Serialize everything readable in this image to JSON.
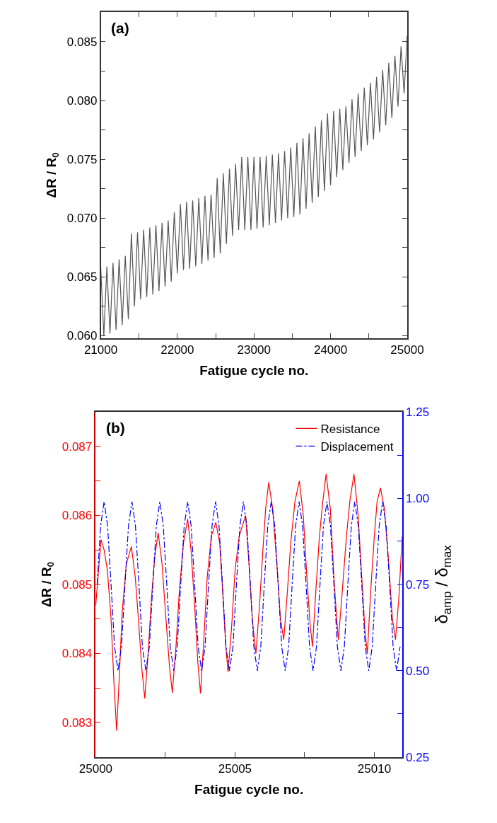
{
  "chart_data": [
    {
      "type": "line",
      "annotations": [
        "(a)"
      ],
      "xlabel": "Fatigue cycle no.",
      "ylabel": "ΔR / R$_{0}$",
      "color": "#555555",
      "grid": false,
      "xlim": [
        21000,
        25000
      ],
      "ylim": [
        0.0598,
        0.0875
      ],
      "xticks": [
        21000,
        {
          "value": 21500,
          "label": null
        },
        22000,
        {
          "value": 22500,
          "label": null
        },
        23000,
        {
          "value": 23500,
          "label": null
        },
        24000,
        {
          "value": 24500,
          "label": null
        },
        25000
      ],
      "yticks": [
        {
          "value": 0.06,
          "label": "0.060"
        },
        {
          "value": 0.0625,
          "label": null
        },
        {
          "value": 0.065,
          "label": "0.065"
        },
        {
          "value": 0.0675,
          "label": null
        },
        {
          "value": 0.07,
          "label": "0.070"
        },
        {
          "value": 0.0725,
          "label": null
        },
        {
          "value": 0.075,
          "label": "0.075"
        },
        {
          "value": 0.0775,
          "label": null
        },
        {
          "value": 0.08,
          "label": "0.080"
        },
        {
          "value": 0.0825,
          "label": null
        },
        {
          "value": 0.085,
          "label": "0.085"
        }
      ],
      "x": [
        21000,
        21040,
        21080,
        21120,
        21160,
        21200,
        21240,
        21280,
        21320,
        21360,
        21400,
        21440,
        21480,
        21520,
        21560,
        21600,
        21640,
        21680,
        21720,
        21760,
        21800,
        21840,
        21880,
        21920,
        21960,
        22000,
        22040,
        22080,
        22120,
        22160,
        22200,
        22240,
        22280,
        22320,
        22360,
        22400,
        22440,
        22480,
        22520,
        22560,
        22600,
        22640,
        22680,
        22720,
        22760,
        22800,
        22840,
        22880,
        22920,
        22960,
        23000,
        23040,
        23080,
        23120,
        23160,
        23200,
        23240,
        23280,
        23320,
        23360,
        23400,
        23440,
        23480,
        23520,
        23560,
        23600,
        23640,
        23680,
        23720,
        23760,
        23800,
        23840,
        23880,
        23920,
        23960,
        24000,
        24040,
        24080,
        24120,
        24160,
        24200,
        24240,
        24280,
        24320,
        24360,
        24400,
        24440,
        24480,
        24520,
        24560,
        24600,
        24640,
        24680,
        24720,
        24760,
        24800,
        24840,
        24880,
        24920,
        24960,
        25000
      ],
      "values": [
        0.0658,
        0.06,
        0.0659,
        0.0602,
        0.0662,
        0.0605,
        0.0665,
        0.0609,
        0.0668,
        0.0614,
        0.0687,
        0.0625,
        0.0688,
        0.0631,
        0.069,
        0.0633,
        0.0692,
        0.0635,
        0.0694,
        0.0638,
        0.0696,
        0.0642,
        0.0698,
        0.0646,
        0.0705,
        0.0653,
        0.0712,
        0.0656,
        0.0714,
        0.0657,
        0.0715,
        0.0659,
        0.0717,
        0.0661,
        0.0719,
        0.0664,
        0.072,
        0.0666,
        0.0734,
        0.067,
        0.0738,
        0.0678,
        0.0742,
        0.0685,
        0.0746,
        0.069,
        0.0752,
        0.069,
        0.0752,
        0.069,
        0.0752,
        0.0691,
        0.0752,
        0.0692,
        0.0753,
        0.0694,
        0.0754,
        0.0696,
        0.0755,
        0.0698,
        0.0757,
        0.07,
        0.076,
        0.0701,
        0.0764,
        0.0703,
        0.0768,
        0.0708,
        0.0772,
        0.0713,
        0.0778,
        0.0718,
        0.0783,
        0.0723,
        0.0789,
        0.0728,
        0.0791,
        0.0735,
        0.0793,
        0.0741,
        0.0795,
        0.0747,
        0.0801,
        0.0752,
        0.0806,
        0.0757,
        0.0811,
        0.0762,
        0.0815,
        0.0767,
        0.082,
        0.0773,
        0.0826,
        0.0779,
        0.0832,
        0.0785,
        0.0838,
        0.0795,
        0.0846,
        0.0806,
        0.0855
      ]
    },
    {
      "type": "line",
      "annotations": [
        "(b)"
      ],
      "xlabel": "Fatigue cycle no.",
      "ylabel": "ΔR / R$_{0}$",
      "y2label": "δ$_{amp}$ / δ$_{max}$",
      "grid": false,
      "legend": "top right",
      "xlim": [
        25000,
        25011
      ],
      "ylim": [
        0.0825,
        0.0875
      ],
      "y2lim": [
        0.25,
        1.25
      ],
      "xticks": [
        25000,
        {
          "value": 25002.5,
          "label": null
        },
        25005,
        {
          "value": 25007.5,
          "label": null
        },
        25010
      ],
      "yticks": [
        {
          "value": 0.083,
          "label": "0.083"
        },
        {
          "value": 0.0835,
          "label": null
        },
        {
          "value": 0.084,
          "label": "0.084"
        },
        {
          "value": 0.0845,
          "label": null
        },
        {
          "value": 0.085,
          "label": "0.085"
        },
        {
          "value": 0.0855,
          "label": null
        },
        {
          "value": 0.086,
          "label": "0.086"
        },
        {
          "value": 0.0865,
          "label": null
        },
        {
          "value": 0.087,
          "label": "0.087"
        }
      ],
      "y2ticks": [
        {
          "value": 0.25,
          "label": "0.25"
        },
        {
          "value": 0.375,
          "label": null
        },
        {
          "value": 0.5,
          "label": "0.50"
        },
        {
          "value": 0.625,
          "label": null
        },
        {
          "value": 0.75,
          "label": "0.75"
        },
        {
          "value": 0.875,
          "label": null
        },
        {
          "value": 1.0,
          "label": "1.00"
        },
        {
          "value": 1.125,
          "label": null
        },
        {
          "value": 1.25,
          "label": "1.25"
        }
      ],
      "series": [
        {
          "name": "Resistance",
          "color": "#ff0000",
          "line_style": "solid",
          "x": [
            25000.0,
            25000.1,
            25000.19,
            25000.3,
            25000.42,
            25000.55,
            25000.65,
            25000.75,
            25000.85,
            25000.95,
            25001.1,
            25001.28,
            25001.42,
            25001.55,
            25001.65,
            25001.76,
            25001.88,
            25002.0,
            25002.12,
            25002.24,
            25002.38,
            25002.52,
            25002.65,
            25002.75,
            25002.88,
            25003.0,
            25003.15,
            25003.3,
            25003.42,
            25003.55,
            25003.66,
            25003.76,
            25003.88,
            25004.0,
            25004.15,
            25004.31,
            25004.45,
            25004.57,
            25004.67,
            25004.75,
            25004.88,
            25005.0,
            25005.15,
            25005.38,
            25005.5,
            25005.62,
            25005.75,
            25005.88,
            25006.0,
            25006.1,
            25006.21,
            25006.35,
            25006.5,
            25006.63,
            25006.75,
            25006.88,
            25007.0,
            25007.15,
            25007.31,
            25007.45,
            25007.58,
            25007.7,
            25007.78,
            25007.9,
            25008.03,
            25008.15,
            25008.27,
            25008.42,
            25008.55,
            25008.65,
            25008.71,
            25008.85,
            25009.0,
            25009.12,
            25009.27,
            25009.42,
            25009.55,
            25009.67,
            25009.75,
            25009.87,
            25010.0,
            25010.1,
            25010.22,
            25010.36,
            25010.5,
            25010.65,
            25010.76,
            25010.88,
            25011.0
          ],
          "values": [
            0.0847,
            0.0852,
            0.08565,
            0.0855,
            0.0852,
            0.0845,
            0.0836,
            0.08288,
            0.0837,
            0.0846,
            0.0853,
            0.08555,
            0.0851,
            0.0844,
            0.0838,
            0.08335,
            0.084,
            0.0848,
            0.0854,
            0.08575,
            0.0853,
            0.0845,
            0.0838,
            0.08343,
            0.0841,
            0.0849,
            0.0856,
            0.08595,
            0.0855,
            0.0847,
            0.0839,
            0.08342,
            0.0842,
            0.0851,
            0.0857,
            0.0859,
            0.0856,
            0.0848,
            0.0841,
            0.08373,
            0.0844,
            0.0852,
            0.0857,
            0.086,
            0.0853,
            0.0845,
            0.084,
            0.0847,
            0.0855,
            0.0861,
            0.08648,
            0.0861,
            0.0853,
            0.0845,
            0.0842,
            0.0849,
            0.0856,
            0.0862,
            0.0865,
            0.086,
            0.0851,
            0.0844,
            0.0841,
            0.0849,
            0.0857,
            0.0862,
            0.0866,
            0.0861,
            0.0851,
            0.0845,
            0.0842,
            0.0849,
            0.0857,
            0.0862,
            0.0866,
            0.086,
            0.0851,
            0.0843,
            0.084,
            0.0849,
            0.0857,
            0.0862,
            0.0864,
            0.0861,
            0.0854,
            0.0845,
            0.0842,
            0.0848,
            0.0857
          ]
        },
        {
          "name": "Displacement",
          "color": "#0000ff",
          "line_style": "dashdot",
          "axis": "y2",
          "x": [
            25000.05,
            25000.175,
            25000.3,
            25000.425,
            25000.55,
            25000.675,
            25000.8,
            25000.925,
            25001.05,
            25001.175,
            25001.3,
            25001.425,
            25001.55,
            25001.675,
            25001.8,
            25001.925,
            25002.05,
            25002.175,
            25002.3,
            25002.425,
            25002.55,
            25002.675,
            25002.8,
            25002.925,
            25003.05,
            25003.175,
            25003.3,
            25003.425,
            25003.55,
            25003.675,
            25003.8,
            25003.925,
            25004.05,
            25004.175,
            25004.3,
            25004.425,
            25004.55,
            25004.675,
            25004.8,
            25004.925,
            25005.05,
            25005.175,
            25005.3,
            25005.425,
            25005.55,
            25005.675,
            25005.8,
            25005.925,
            25006.05,
            25006.175,
            25006.3,
            25006.425,
            25006.55,
            25006.675,
            25006.8,
            25006.925,
            25007.05,
            25007.175,
            25007.3,
            25007.425,
            25007.55,
            25007.675,
            25007.8,
            25007.925,
            25008.05,
            25008.175,
            25008.3,
            25008.425,
            25008.55,
            25008.675,
            25008.8,
            25008.925,
            25009.05,
            25009.175,
            25009.3,
            25009.425,
            25009.55,
            25009.675,
            25009.8,
            25009.925,
            25010.05,
            25010.175,
            25010.3,
            25010.425,
            25010.55,
            25010.675,
            25010.8,
            25010.925
          ],
          "values": [
            0.75,
            0.92,
            0.99,
            0.92,
            0.75,
            0.57,
            0.5,
            0.57,
            0.75,
            0.92,
            0.99,
            0.92,
            0.75,
            0.57,
            0.5,
            0.57,
            0.75,
            0.92,
            0.99,
            0.92,
            0.75,
            0.57,
            0.5,
            0.57,
            0.75,
            0.92,
            0.99,
            0.92,
            0.75,
            0.57,
            0.5,
            0.57,
            0.75,
            0.92,
            0.99,
            0.92,
            0.75,
            0.57,
            0.5,
            0.57,
            0.75,
            0.92,
            0.99,
            0.92,
            0.75,
            0.57,
            0.5,
            0.57,
            0.75,
            0.92,
            0.99,
            0.92,
            0.75,
            0.57,
            0.5,
            0.57,
            0.75,
            0.92,
            0.99,
            0.92,
            0.75,
            0.57,
            0.5,
            0.57,
            0.75,
            0.92,
            0.99,
            0.92,
            0.75,
            0.57,
            0.5,
            0.57,
            0.75,
            0.92,
            0.99,
            0.92,
            0.75,
            0.57,
            0.5,
            0.57,
            0.75,
            0.92,
            0.99,
            0.92,
            0.75,
            0.57,
            0.5,
            0.57
          ]
        }
      ]
    }
  ]
}
